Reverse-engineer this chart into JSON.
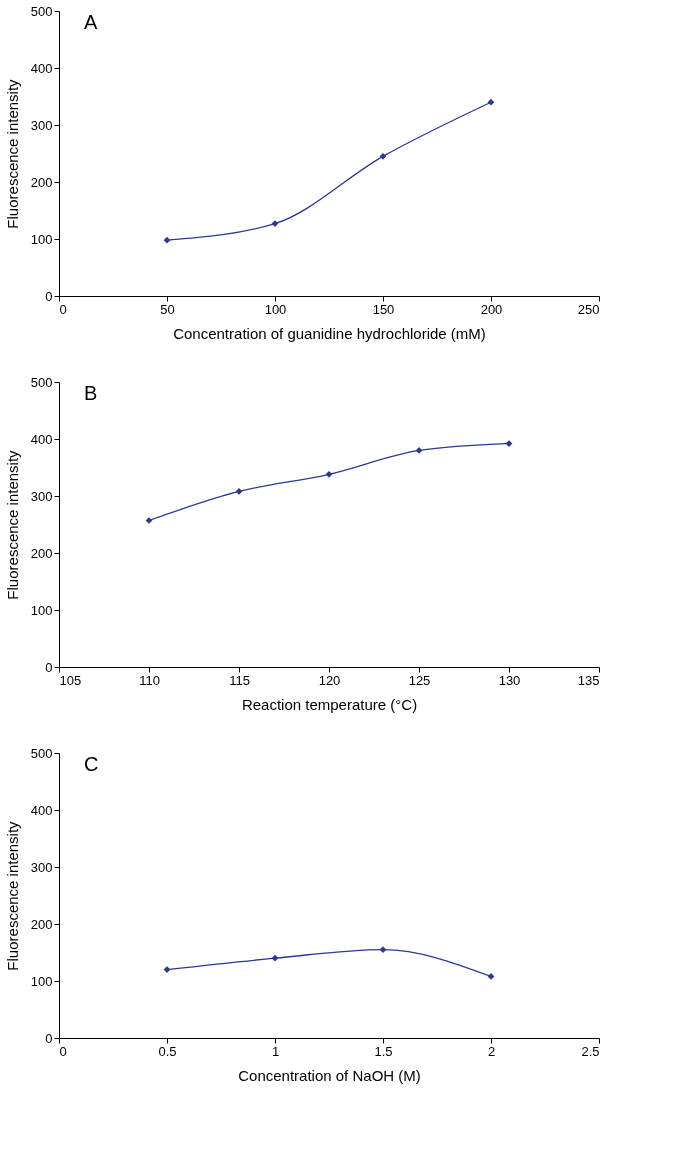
{
  "chart_data": [
    {
      "type": "line",
      "title": "A",
      "xlabel": "Concentration of guanidine hydrochloride (mM)",
      "ylabel": "Fluorescence intensity",
      "x": [
        50,
        100,
        150,
        200
      ],
      "series": [
        {
          "color": "#2b3990",
          "values": [
            98,
            127,
            245,
            340
          ]
        }
      ],
      "xlim": [
        0,
        250
      ],
      "xticks": [
        0,
        50,
        100,
        150,
        200,
        250
      ],
      "ylim": [
        0,
        500
      ],
      "yticks": [
        0,
        100,
        200,
        300,
        400,
        500
      ],
      "marker": "diamond",
      "line_style": "solid",
      "grid": false
    },
    {
      "type": "line",
      "title": "B",
      "xlabel": "Reaction temperature (°C)",
      "ylabel": "Fluorescence intensity",
      "x": [
        110,
        115,
        120,
        125,
        130
      ],
      "series": [
        {
          "color": "#2b3990",
          "values": [
            257,
            308,
            338,
            380,
            392
          ]
        }
      ],
      "xlim": [
        105,
        135
      ],
      "xticks": [
        105,
        110,
        115,
        120,
        125,
        130,
        135
      ],
      "ylim": [
        0,
        500
      ],
      "yticks": [
        0,
        100,
        200,
        300,
        400,
        500
      ],
      "marker": "diamond",
      "line_style": "solid",
      "grid": false
    },
    {
      "type": "line",
      "title": "C",
      "xlabel": "Concentration of NaOH (M)",
      "ylabel": "Fluorescence intensity",
      "x": [
        0.5,
        1,
        1.5,
        2
      ],
      "series": [
        {
          "color": "#2b3990",
          "values": [
            120,
            140,
            155,
            108
          ]
        }
      ],
      "xlim": [
        0,
        2.5
      ],
      "xticks": [
        0,
        0.5,
        1,
        1.5,
        2,
        2.5
      ],
      "ylim": [
        0,
        500
      ],
      "yticks": [
        0,
        100,
        200,
        300,
        400,
        500
      ],
      "marker": "diamond",
      "line_style": "solid",
      "grid": false
    }
  ]
}
